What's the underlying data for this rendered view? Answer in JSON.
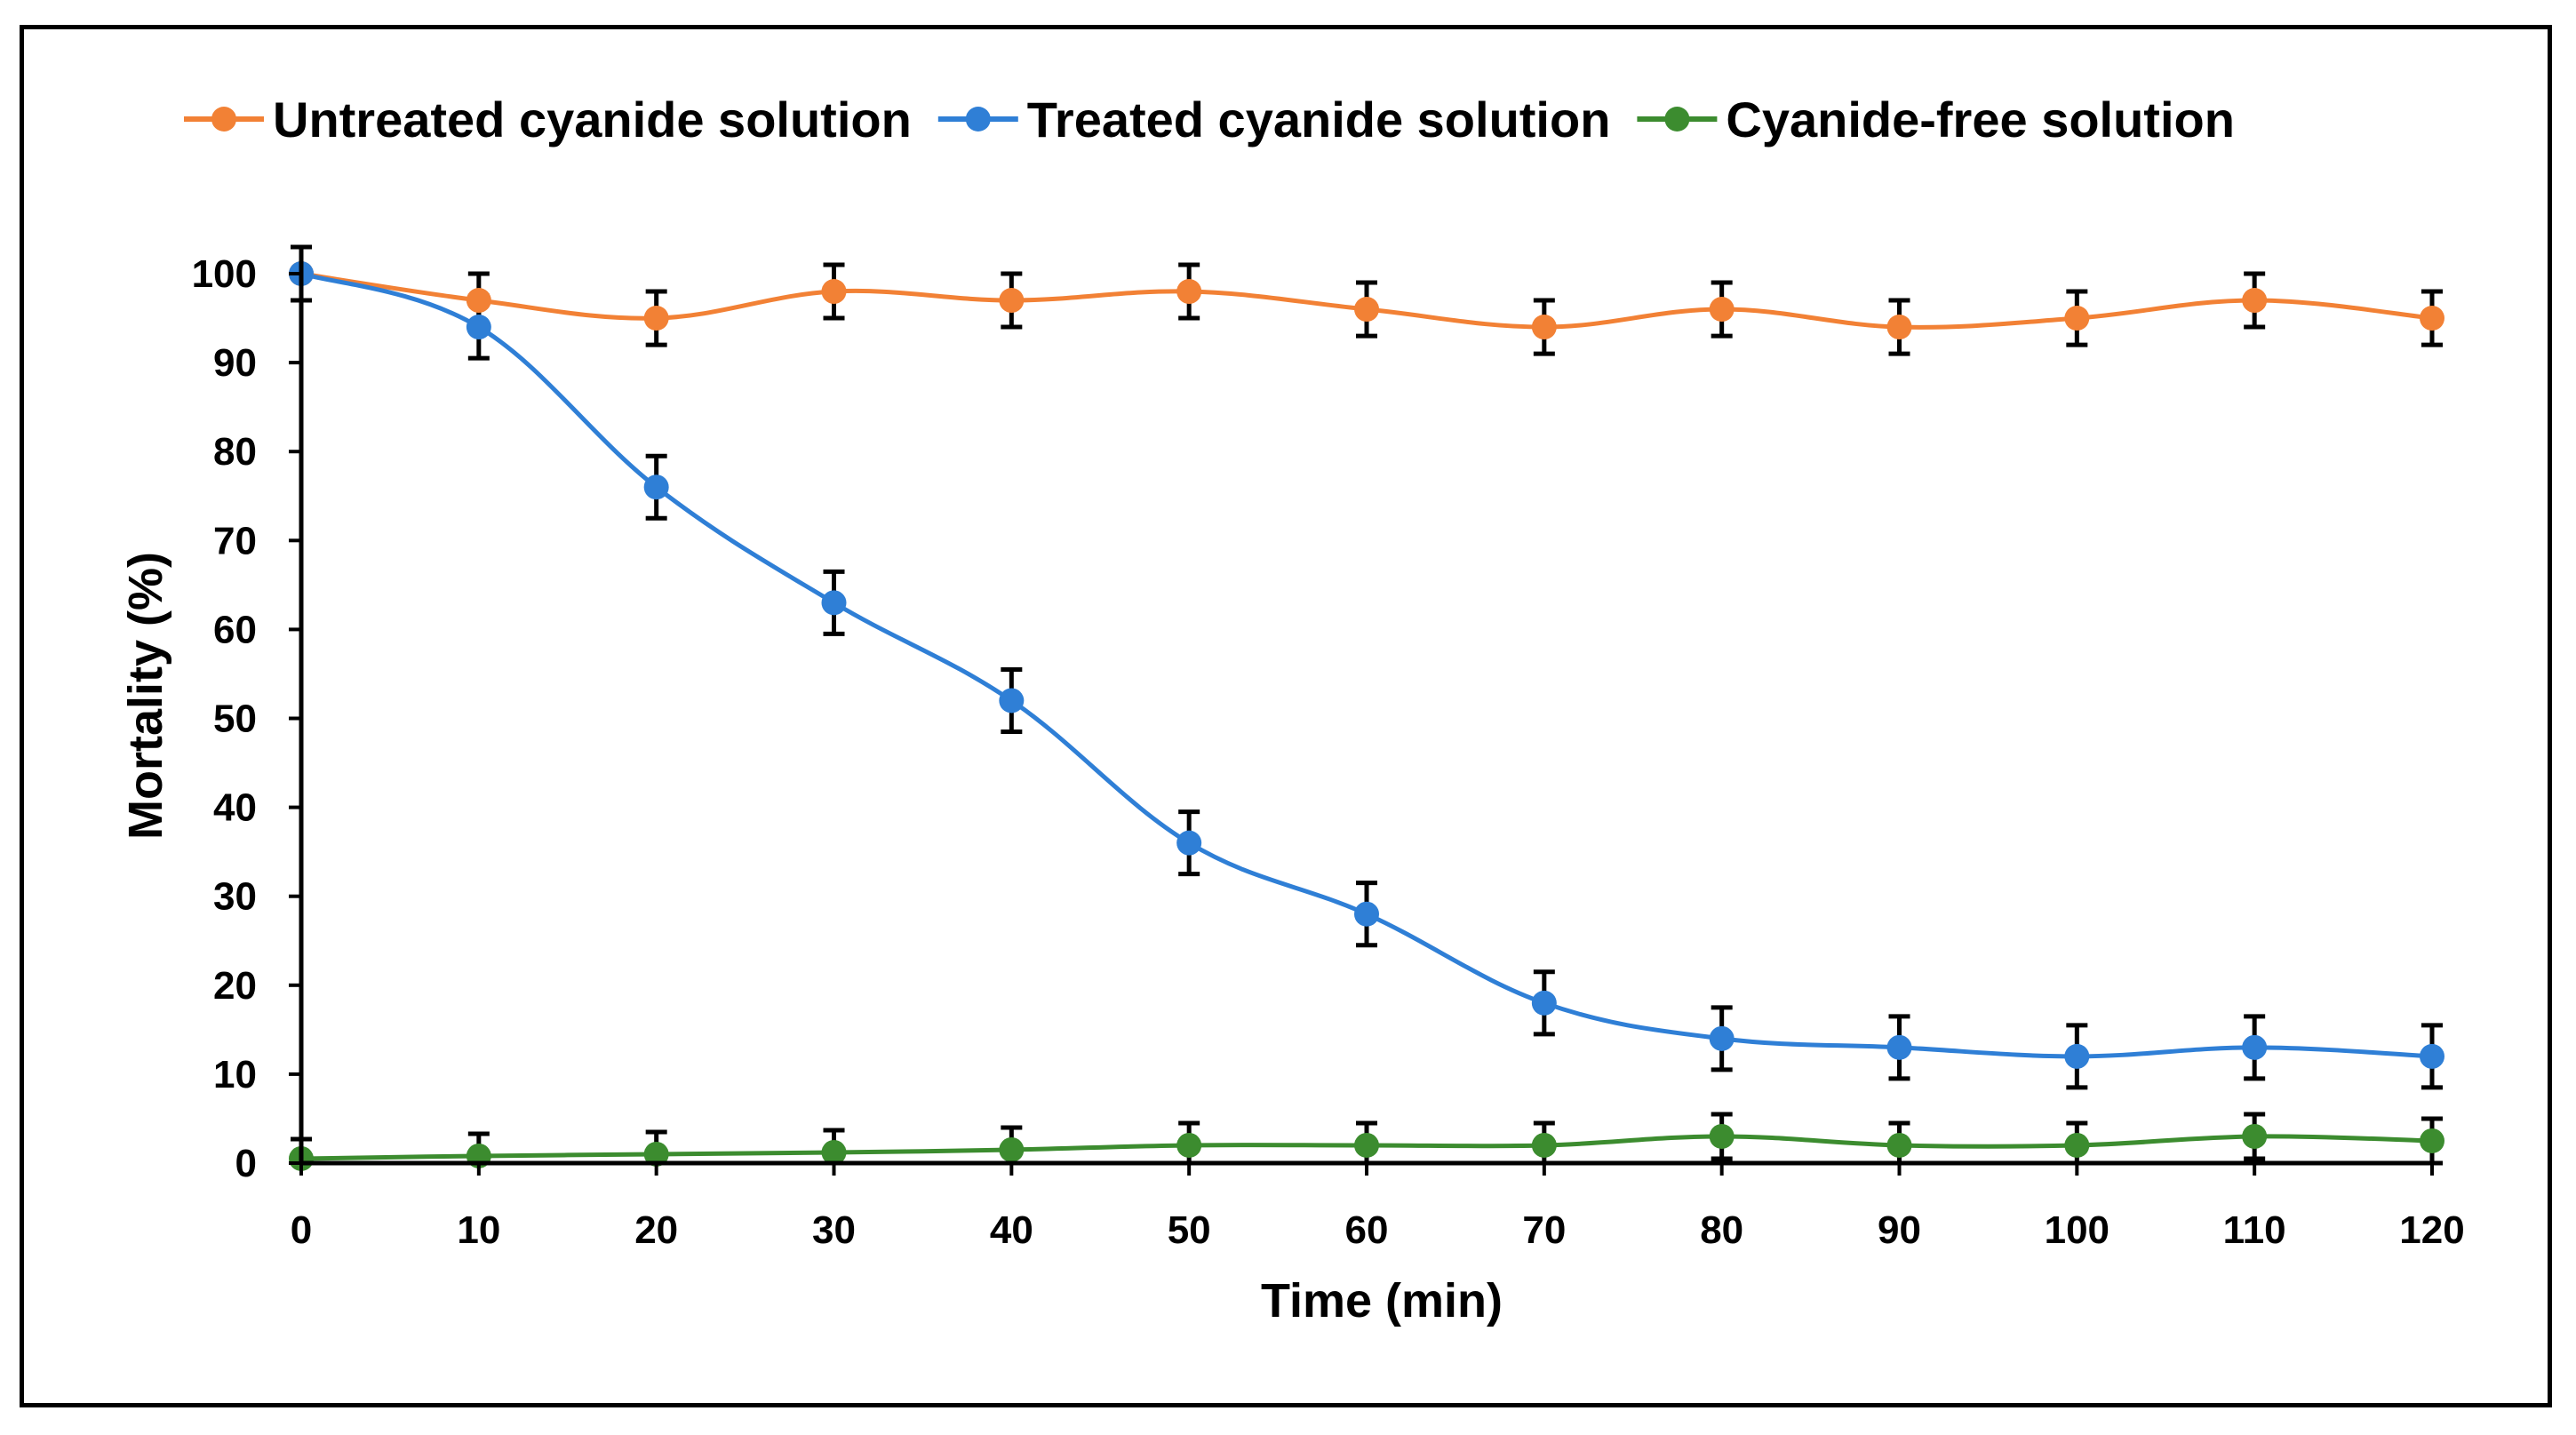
{
  "chart_data": {
    "type": "line",
    "title": "",
    "xlabel": "Time (min)",
    "ylabel": "Mortality  (%)",
    "x": [
      0,
      10,
      20,
      30,
      40,
      50,
      60,
      70,
      80,
      90,
      100,
      110,
      120
    ],
    "xlim": [
      0,
      120
    ],
    "ylim": [
      0,
      100
    ],
    "xticks": [
      0,
      10,
      20,
      30,
      40,
      50,
      60,
      70,
      80,
      90,
      100,
      110,
      120
    ],
    "yticks": [
      0,
      10,
      20,
      30,
      40,
      50,
      60,
      70,
      80,
      90,
      100
    ],
    "grid": false,
    "legend_position": "top",
    "series": [
      {
        "name": "Untreated cyanide solution",
        "color": "#F28135",
        "values": [
          100,
          97,
          95,
          98,
          97,
          98,
          96,
          94,
          96,
          94,
          95,
          97,
          95
        ],
        "errors": [
          3,
          3,
          3,
          3,
          3,
          3,
          3,
          3,
          3,
          3,
          3,
          3,
          3
        ]
      },
      {
        "name": "Treated cyanide solution",
        "color": "#2F7FD6",
        "values": [
          100,
          94,
          76,
          63,
          52,
          36,
          28,
          18,
          14,
          13,
          12,
          13,
          12
        ],
        "errors": [
          3,
          3.5,
          3.5,
          3.5,
          3.5,
          3.5,
          3.5,
          3.5,
          3.5,
          3.5,
          3.5,
          3.5,
          3.5
        ]
      },
      {
        "name": "Cyanide-free solution",
        "color": "#3C8C2F",
        "values": [
          0.5,
          0.8,
          1,
          1.2,
          1.5,
          2,
          2,
          2,
          3,
          2,
          2,
          3,
          2.5
        ],
        "errors": [
          2.2,
          2.5,
          2.5,
          2.5,
          2.5,
          2.5,
          2.5,
          2.5,
          2.5,
          2.5,
          2.5,
          2.5,
          2.5
        ]
      }
    ]
  }
}
